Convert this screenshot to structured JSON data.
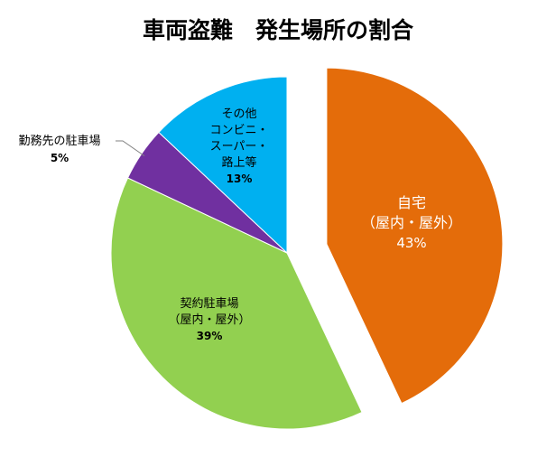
{
  "chart_data": {
    "type": "pie",
    "title": "車両盗難　発生場所の割合",
    "slices": [
      {
        "label_lines": [
          "自宅",
          "（屋内・屋外）"
        ],
        "value": 43,
        "value_label": "43%",
        "color": "#E46C0A",
        "exploded": true
      },
      {
        "label_lines": [
          "契約駐車場",
          "（屋内・屋外）"
        ],
        "value": 39,
        "value_label": "39%",
        "color": "#92D050",
        "exploded": false
      },
      {
        "label_lines": [
          "勤務先の駐車場"
        ],
        "value": 5,
        "value_label": "5%",
        "color": "#7030A0",
        "exploded": false
      },
      {
        "label_lines": [
          "その他",
          "コンビニ・",
          "スーパー・",
          "路上等"
        ],
        "value": 13,
        "value_label": "13%",
        "color": "#00B0F0",
        "exploded": false
      }
    ]
  }
}
